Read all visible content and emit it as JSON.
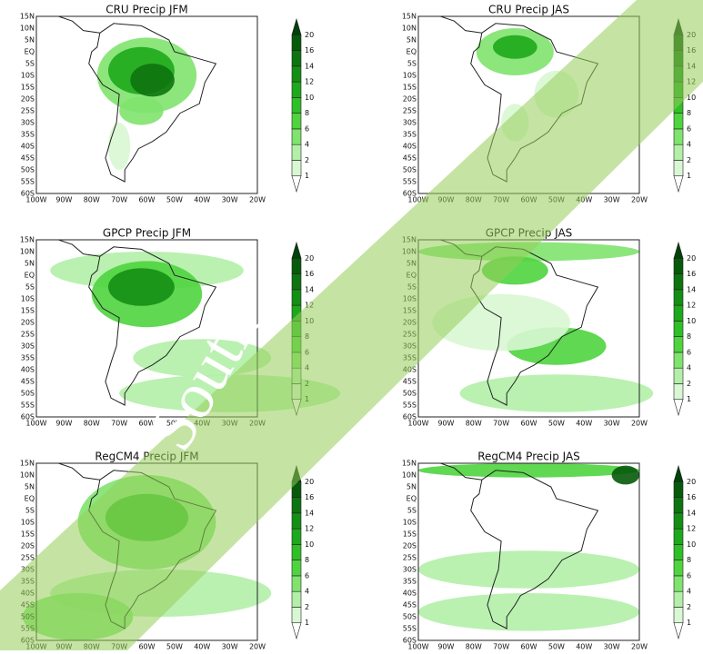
{
  "panels": [
    {
      "title": "CRU Precip JFM"
    },
    {
      "title": "CRU Precip JAS"
    },
    {
      "title": "GPCP Precip JFM"
    },
    {
      "title": "GPCP Precip JAS"
    },
    {
      "title": "RegCM4 Precip JFM"
    },
    {
      "title": "RegCM4 Precip JAS"
    }
  ],
  "lat_labels": [
    "15N",
    "10N",
    "5N",
    "EQ",
    "5S",
    "10S",
    "15S",
    "20S",
    "25S",
    "30S",
    "35S",
    "40S",
    "45S",
    "50S",
    "55S",
    "60S"
  ],
  "lon_labels": [
    "100W",
    "90W",
    "80W",
    "70W",
    "60W",
    "50W",
    "40W",
    "30W",
    "20W"
  ],
  "colorbar": {
    "levels": [
      1,
      2,
      4,
      6,
      8,
      10,
      12,
      14,
      16,
      20
    ],
    "colors": [
      "#ffffff",
      "#d9f7d3",
      "#b3efa8",
      "#7fe36e",
      "#4fd43f",
      "#2fbf27",
      "#1ea81b",
      "#148f14",
      "#0d740f",
      "#075a0a",
      "#03400a"
    ]
  },
  "watermark": "South"
}
